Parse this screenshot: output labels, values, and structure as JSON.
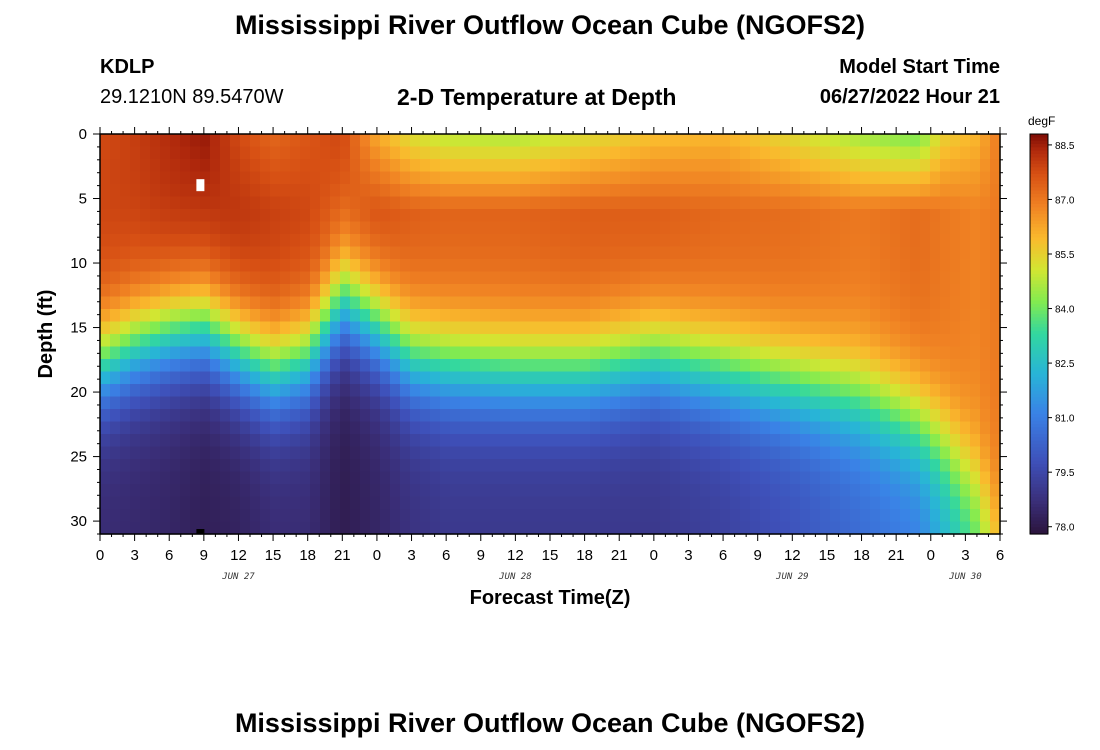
{
  "header": {
    "title": "Mississippi River Outflow Ocean Cube (NGOFS2)",
    "station": "KDLP",
    "coords": "29.1210N  89.5470W",
    "subtitle": "2-D Temperature at Depth",
    "model_label": "Model Start Time",
    "model_time": "06/27/2022 Hour 21"
  },
  "footer": {
    "title": "Mississippi River Outflow Ocean Cube (NGOFS2)"
  },
  "chart_data": {
    "type": "heatmap",
    "title": "2-D Temperature at Depth",
    "xlabel": "Forecast Time(Z)",
    "ylabel": "Depth (ft)",
    "x_hours_range": [
      0,
      78
    ],
    "y_range_ft": [
      0,
      31
    ],
    "x_tick_labels": [
      "0",
      "3",
      "6",
      "9",
      "12",
      "15",
      "18",
      "21",
      "0",
      "3",
      "6",
      "9",
      "12",
      "15",
      "18",
      "21",
      "0",
      "3",
      "6",
      "9",
      "12",
      "15",
      "18",
      "21",
      "0",
      "3",
      "6"
    ],
    "y_ticks": [
      0,
      5,
      10,
      15,
      20,
      25,
      30
    ],
    "date_labels": [
      {
        "text": "JUN 27",
        "hour": 12
      },
      {
        "text": "JUN 28",
        "hour": 36
      },
      {
        "text": "JUN 29",
        "hour": 60
      },
      {
        "text": "JUN 30",
        "hour": 75
      }
    ],
    "marker_hour": 8.7,
    "colorbar": {
      "unit": "degF",
      "min": 77.8,
      "max": 88.8,
      "ticks": [
        "88.5",
        "87.0",
        "85.5",
        "84.0",
        "82.5",
        "81.0",
        "79.5",
        "78.0"
      ]
    },
    "profile_points": [
      {
        "hour": 0,
        "top": 87.8,
        "mid": 87.9,
        "thermo": 18.0,
        "bottom": 78.6
      },
      {
        "hour": 3,
        "top": 88.0,
        "mid": 88.0,
        "thermo": 16.5,
        "bottom": 78.5
      },
      {
        "hour": 6,
        "top": 88.3,
        "mid": 88.2,
        "thermo": 15.5,
        "bottom": 78.4
      },
      {
        "hour": 9,
        "top": 88.6,
        "mid": 88.3,
        "thermo": 15.0,
        "bottom": 78.2
      },
      {
        "hour": 12,
        "top": 87.8,
        "mid": 88.2,
        "thermo": 17.0,
        "bottom": 78.3
      },
      {
        "hour": 15,
        "top": 87.3,
        "mid": 88.0,
        "thermo": 18.5,
        "bottom": 78.6
      },
      {
        "hour": 18,
        "top": 87.6,
        "mid": 87.9,
        "thermo": 17.5,
        "bottom": 78.6
      },
      {
        "hour": 21,
        "top": 87.9,
        "mid": 87.6,
        "thermo": 13.0,
        "bottom": 78.1
      },
      {
        "hour": 24,
        "top": 86.2,
        "mid": 87.8,
        "thermo": 15.0,
        "bottom": 78.4
      },
      {
        "hour": 27,
        "top": 85.2,
        "mid": 87.5,
        "thermo": 17.5,
        "bottom": 78.8
      },
      {
        "hour": 30,
        "top": 84.8,
        "mid": 87.4,
        "thermo": 18.0,
        "bottom": 79.0
      },
      {
        "hour": 36,
        "top": 84.6,
        "mid": 87.4,
        "thermo": 18.5,
        "bottom": 79.0
      },
      {
        "hour": 42,
        "top": 85.2,
        "mid": 87.5,
        "thermo": 18.5,
        "bottom": 79.0
      },
      {
        "hour": 48,
        "top": 85.8,
        "mid": 87.5,
        "thermo": 17.5,
        "bottom": 79.0
      },
      {
        "hour": 54,
        "top": 86.0,
        "mid": 87.3,
        "thermo": 18.5,
        "bottom": 79.3
      },
      {
        "hour": 60,
        "top": 85.3,
        "mid": 87.2,
        "thermo": 19.5,
        "bottom": 79.8
      },
      {
        "hour": 66,
        "top": 84.5,
        "mid": 87.0,
        "thermo": 20.5,
        "bottom": 80.5
      },
      {
        "hour": 71,
        "top": 84.0,
        "mid": 87.2,
        "thermo": 22.5,
        "bottom": 81.0
      },
      {
        "hour": 73,
        "top": 85.5,
        "mid": 87.0,
        "thermo": 24.0,
        "bottom": 82.0
      },
      {
        "hour": 76,
        "top": 86.0,
        "mid": 86.8,
        "thermo": 27.0,
        "bottom": 83.5
      },
      {
        "hour": 78,
        "top": 87.0,
        "mid": 87.0,
        "thermo": 30.0,
        "bottom": 85.5
      }
    ]
  }
}
